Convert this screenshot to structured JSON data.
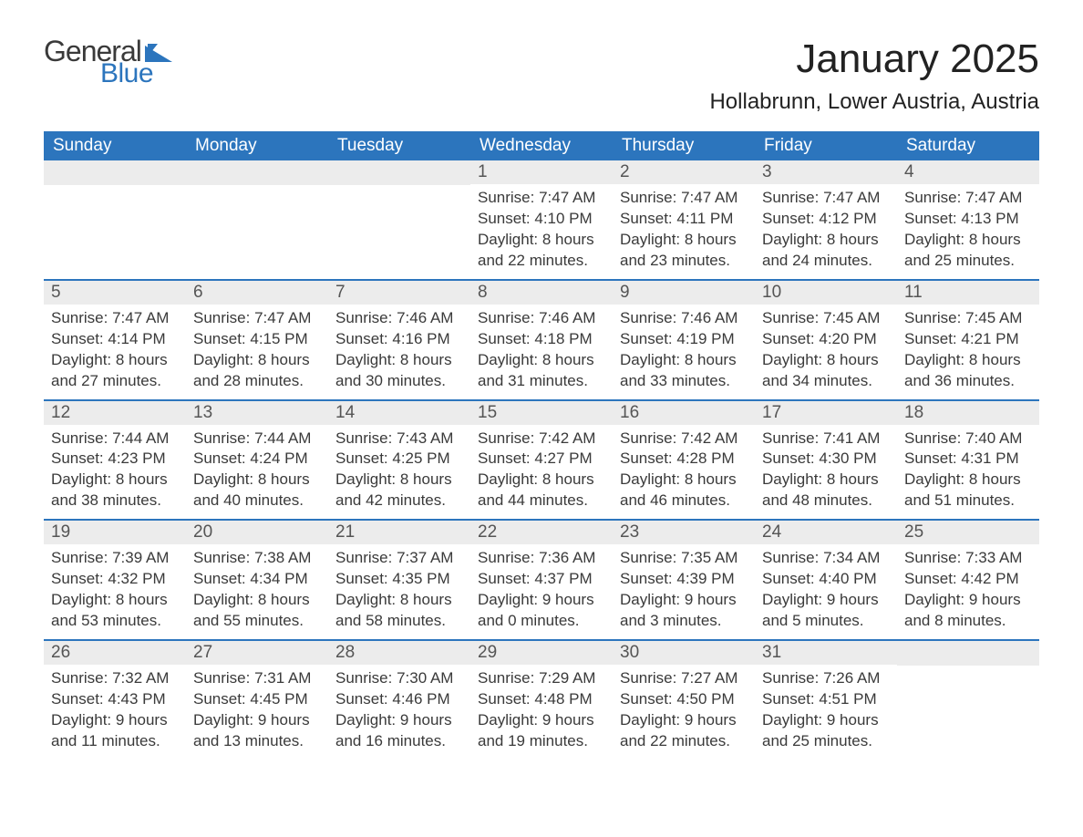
{
  "logo": {
    "text1": "General",
    "text2": "Blue",
    "triangle_color": "#2c75bd"
  },
  "header": {
    "title": "January 2025",
    "location": "Hollabrunn, Lower Austria, Austria"
  },
  "colors": {
    "header_bg": "#2c75bd",
    "header_text": "#ffffff",
    "daynum_bg": "#ececec",
    "row_divider": "#2c75bd",
    "body_text": "#3a3a3a"
  },
  "calendar": {
    "weekdays": [
      "Sunday",
      "Monday",
      "Tuesday",
      "Wednesday",
      "Thursday",
      "Friday",
      "Saturday"
    ],
    "weeks": [
      [
        null,
        null,
        null,
        {
          "n": "1",
          "sr": "Sunrise: 7:47 AM",
          "ss": "Sunset: 4:10 PM",
          "d1": "Daylight: 8 hours",
          "d2": "and 22 minutes."
        },
        {
          "n": "2",
          "sr": "Sunrise: 7:47 AM",
          "ss": "Sunset: 4:11 PM",
          "d1": "Daylight: 8 hours",
          "d2": "and 23 minutes."
        },
        {
          "n": "3",
          "sr": "Sunrise: 7:47 AM",
          "ss": "Sunset: 4:12 PM",
          "d1": "Daylight: 8 hours",
          "d2": "and 24 minutes."
        },
        {
          "n": "4",
          "sr": "Sunrise: 7:47 AM",
          "ss": "Sunset: 4:13 PM",
          "d1": "Daylight: 8 hours",
          "d2": "and 25 minutes."
        }
      ],
      [
        {
          "n": "5",
          "sr": "Sunrise: 7:47 AM",
          "ss": "Sunset: 4:14 PM",
          "d1": "Daylight: 8 hours",
          "d2": "and 27 minutes."
        },
        {
          "n": "6",
          "sr": "Sunrise: 7:47 AM",
          "ss": "Sunset: 4:15 PM",
          "d1": "Daylight: 8 hours",
          "d2": "and 28 minutes."
        },
        {
          "n": "7",
          "sr": "Sunrise: 7:46 AM",
          "ss": "Sunset: 4:16 PM",
          "d1": "Daylight: 8 hours",
          "d2": "and 30 minutes."
        },
        {
          "n": "8",
          "sr": "Sunrise: 7:46 AM",
          "ss": "Sunset: 4:18 PM",
          "d1": "Daylight: 8 hours",
          "d2": "and 31 minutes."
        },
        {
          "n": "9",
          "sr": "Sunrise: 7:46 AM",
          "ss": "Sunset: 4:19 PM",
          "d1": "Daylight: 8 hours",
          "d2": "and 33 minutes."
        },
        {
          "n": "10",
          "sr": "Sunrise: 7:45 AM",
          "ss": "Sunset: 4:20 PM",
          "d1": "Daylight: 8 hours",
          "d2": "and 34 minutes."
        },
        {
          "n": "11",
          "sr": "Sunrise: 7:45 AM",
          "ss": "Sunset: 4:21 PM",
          "d1": "Daylight: 8 hours",
          "d2": "and 36 minutes."
        }
      ],
      [
        {
          "n": "12",
          "sr": "Sunrise: 7:44 AM",
          "ss": "Sunset: 4:23 PM",
          "d1": "Daylight: 8 hours",
          "d2": "and 38 minutes."
        },
        {
          "n": "13",
          "sr": "Sunrise: 7:44 AM",
          "ss": "Sunset: 4:24 PM",
          "d1": "Daylight: 8 hours",
          "d2": "and 40 minutes."
        },
        {
          "n": "14",
          "sr": "Sunrise: 7:43 AM",
          "ss": "Sunset: 4:25 PM",
          "d1": "Daylight: 8 hours",
          "d2": "and 42 minutes."
        },
        {
          "n": "15",
          "sr": "Sunrise: 7:42 AM",
          "ss": "Sunset: 4:27 PM",
          "d1": "Daylight: 8 hours",
          "d2": "and 44 minutes."
        },
        {
          "n": "16",
          "sr": "Sunrise: 7:42 AM",
          "ss": "Sunset: 4:28 PM",
          "d1": "Daylight: 8 hours",
          "d2": "and 46 minutes."
        },
        {
          "n": "17",
          "sr": "Sunrise: 7:41 AM",
          "ss": "Sunset: 4:30 PM",
          "d1": "Daylight: 8 hours",
          "d2": "and 48 minutes."
        },
        {
          "n": "18",
          "sr": "Sunrise: 7:40 AM",
          "ss": "Sunset: 4:31 PM",
          "d1": "Daylight: 8 hours",
          "d2": "and 51 minutes."
        }
      ],
      [
        {
          "n": "19",
          "sr": "Sunrise: 7:39 AM",
          "ss": "Sunset: 4:32 PM",
          "d1": "Daylight: 8 hours",
          "d2": "and 53 minutes."
        },
        {
          "n": "20",
          "sr": "Sunrise: 7:38 AM",
          "ss": "Sunset: 4:34 PM",
          "d1": "Daylight: 8 hours",
          "d2": "and 55 minutes."
        },
        {
          "n": "21",
          "sr": "Sunrise: 7:37 AM",
          "ss": "Sunset: 4:35 PM",
          "d1": "Daylight: 8 hours",
          "d2": "and 58 minutes."
        },
        {
          "n": "22",
          "sr": "Sunrise: 7:36 AM",
          "ss": "Sunset: 4:37 PM",
          "d1": "Daylight: 9 hours",
          "d2": "and 0 minutes."
        },
        {
          "n": "23",
          "sr": "Sunrise: 7:35 AM",
          "ss": "Sunset: 4:39 PM",
          "d1": "Daylight: 9 hours",
          "d2": "and 3 minutes."
        },
        {
          "n": "24",
          "sr": "Sunrise: 7:34 AM",
          "ss": "Sunset: 4:40 PM",
          "d1": "Daylight: 9 hours",
          "d2": "and 5 minutes."
        },
        {
          "n": "25",
          "sr": "Sunrise: 7:33 AM",
          "ss": "Sunset: 4:42 PM",
          "d1": "Daylight: 9 hours",
          "d2": "and 8 minutes."
        }
      ],
      [
        {
          "n": "26",
          "sr": "Sunrise: 7:32 AM",
          "ss": "Sunset: 4:43 PM",
          "d1": "Daylight: 9 hours",
          "d2": "and 11 minutes."
        },
        {
          "n": "27",
          "sr": "Sunrise: 7:31 AM",
          "ss": "Sunset: 4:45 PM",
          "d1": "Daylight: 9 hours",
          "d2": "and 13 minutes."
        },
        {
          "n": "28",
          "sr": "Sunrise: 7:30 AM",
          "ss": "Sunset: 4:46 PM",
          "d1": "Daylight: 9 hours",
          "d2": "and 16 minutes."
        },
        {
          "n": "29",
          "sr": "Sunrise: 7:29 AM",
          "ss": "Sunset: 4:48 PM",
          "d1": "Daylight: 9 hours",
          "d2": "and 19 minutes."
        },
        {
          "n": "30",
          "sr": "Sunrise: 7:27 AM",
          "ss": "Sunset: 4:50 PM",
          "d1": "Daylight: 9 hours",
          "d2": "and 22 minutes."
        },
        {
          "n": "31",
          "sr": "Sunrise: 7:26 AM",
          "ss": "Sunset: 4:51 PM",
          "d1": "Daylight: 9 hours",
          "d2": "and 25 minutes."
        },
        null
      ]
    ]
  }
}
